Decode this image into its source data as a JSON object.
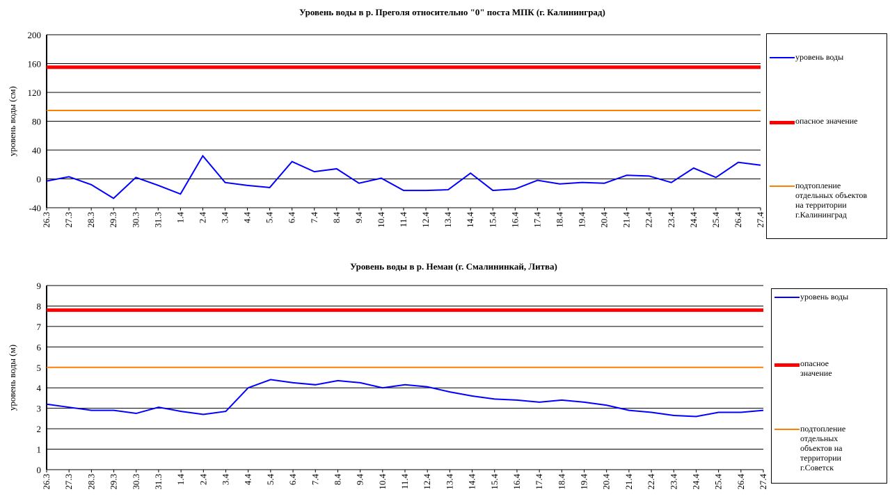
{
  "chart_data": [
    {
      "type": "line",
      "title": "Уровень воды в р. Преголя относительно \"0\" поста МПК (г. Калининград)",
      "y_label": "уровень воды (см)",
      "categories": [
        "26.3",
        "27.3",
        "28.3",
        "29.3",
        "30.3",
        "31.3",
        "1.4",
        "2.4",
        "3.4",
        "4.4",
        "5.4",
        "6.4",
        "7.4",
        "8.4",
        "9.4",
        "10.4",
        "11.4",
        "12.4",
        "13.4",
        "14.4",
        "15.4",
        "16.4",
        "17.4",
        "18.4",
        "19.4",
        "20.4",
        "21.4",
        "22.4",
        "23.4",
        "24.4",
        "25.4",
        "26.4",
        "27.4"
      ],
      "series": [
        {
          "name": "уровень воды",
          "color": "#0000ff",
          "values": [
            -3,
            3,
            -8,
            -27,
            2,
            -9,
            -21,
            32,
            -5,
            -9,
            -12,
            24,
            10,
            14,
            -6,
            1,
            -16,
            -16,
            -15,
            8,
            -16,
            -14,
            -2,
            -7,
            -5,
            -6,
            5,
            4,
            -5,
            15,
            2,
            23,
            19
          ]
        },
        {
          "name": "опасное  значение",
          "color": "#ff0000",
          "values": [
            155,
            155,
            155,
            155,
            155,
            155,
            155,
            155,
            155,
            155,
            155,
            155,
            155,
            155,
            155,
            155,
            155,
            155,
            155,
            155,
            155,
            155,
            155,
            155,
            155,
            155,
            155,
            155,
            155,
            155,
            155,
            155,
            155
          ]
        },
        {
          "name": "подтопление отдельных объектов на территории г.Калининград",
          "color": "#ff7f00",
          "values": [
            95,
            95,
            95,
            95,
            95,
            95,
            95,
            95,
            95,
            95,
            95,
            95,
            95,
            95,
            95,
            95,
            95,
            95,
            95,
            95,
            95,
            95,
            95,
            95,
            95,
            95,
            95,
            95,
            95,
            95,
            95,
            95,
            95
          ]
        }
      ],
      "ylim": [
        -40,
        200
      ],
      "yticks": [
        -40,
        0,
        40,
        80,
        120,
        160,
        200
      ],
      "grid": true
    },
    {
      "type": "line",
      "title": "Уровень воды в р. Неман (г. Смалининкай, Литва)",
      "y_label": "уровень воды (м)",
      "categories": [
        "26.3",
        "27.3",
        "28.3",
        "29.3",
        "30.3",
        "31.3",
        "1.4",
        "2.4",
        "3.4",
        "4.4",
        "5.4",
        "6.4",
        "7.4",
        "8.4",
        "9.4",
        "10.4",
        "11.4",
        "12.4",
        "13.4",
        "14.4",
        "15.4",
        "16.4",
        "17.4",
        "18.4",
        "19.4",
        "20.4",
        "21.4",
        "22.4",
        "23.4",
        "24.4",
        "25.4",
        "26.4",
        "27.4"
      ],
      "series": [
        {
          "name": "уровень воды",
          "color": "#0000ff",
          "values": [
            3.2,
            3.05,
            2.9,
            2.9,
            2.75,
            3.05,
            2.85,
            2.7,
            2.85,
            4.0,
            4.4,
            4.25,
            4.15,
            4.35,
            4.25,
            4.0,
            4.15,
            4.05,
            3.8,
            3.6,
            3.45,
            3.4,
            3.3,
            3.4,
            3.3,
            3.15,
            2.9,
            2.8,
            2.65,
            2.6,
            2.8,
            2.8,
            2.9
          ]
        },
        {
          "name": "опасное значение",
          "color": "#ff0000",
          "values": [
            7.8,
            7.8,
            7.8,
            7.8,
            7.8,
            7.8,
            7.8,
            7.8,
            7.8,
            7.8,
            7.8,
            7.8,
            7.8,
            7.8,
            7.8,
            7.8,
            7.8,
            7.8,
            7.8,
            7.8,
            7.8,
            7.8,
            7.8,
            7.8,
            7.8,
            7.8,
            7.8,
            7.8,
            7.8,
            7.8,
            7.8,
            7.8,
            7.8
          ]
        },
        {
          "name": "подтопление отдельных объектов на территории г.Советск",
          "color": "#ff7f00",
          "values": [
            5,
            5,
            5,
            5,
            5,
            5,
            5,
            5,
            5,
            5,
            5,
            5,
            5,
            5,
            5,
            5,
            5,
            5,
            5,
            5,
            5,
            5,
            5,
            5,
            5,
            5,
            5,
            5,
            5,
            5,
            5,
            5,
            5
          ]
        }
      ],
      "ylim": [
        0,
        9
      ],
      "yticks": [
        0,
        1,
        2,
        3,
        4,
        5,
        6,
        7,
        8,
        9
      ],
      "grid": true
    }
  ]
}
